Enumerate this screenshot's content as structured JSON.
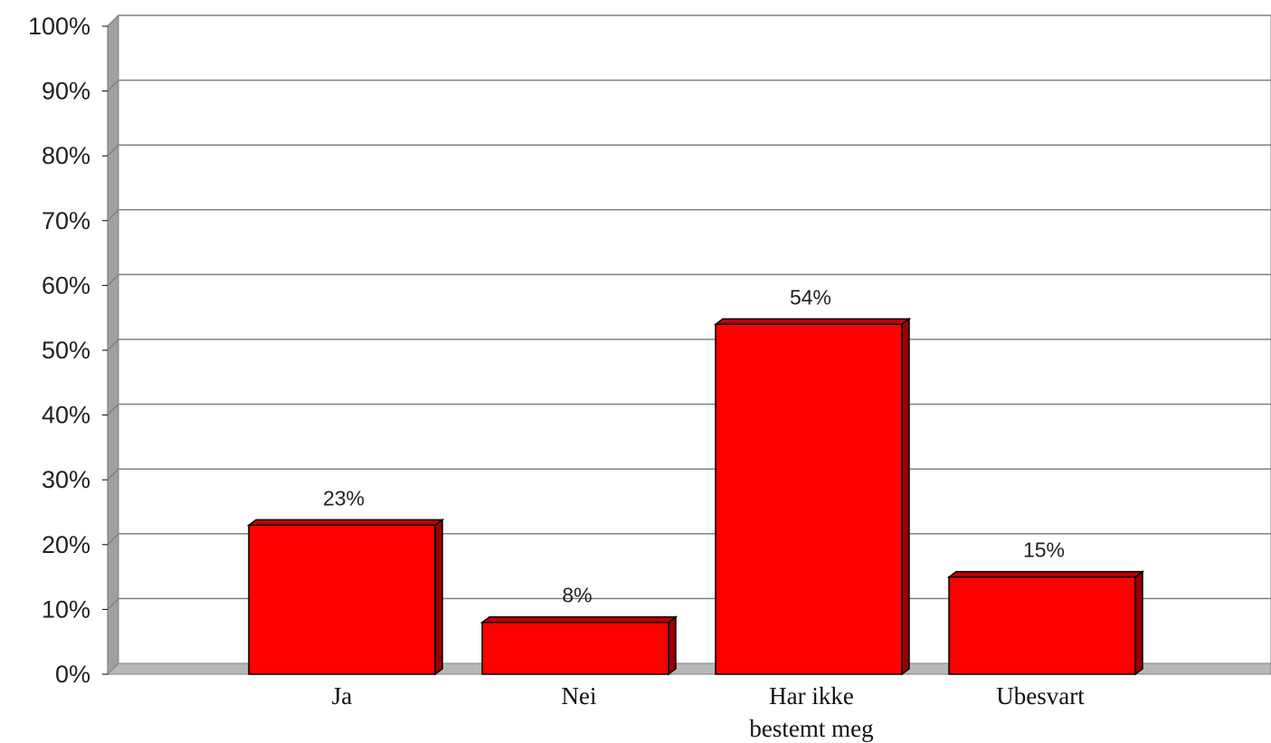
{
  "chart_data": {
    "type": "bar",
    "title": "",
    "xlabel": "",
    "ylabel": "",
    "categories": [
      "Ja",
      "Nei",
      "Har ikke bestemt meg",
      "Ubesvart"
    ],
    "category_label_lines": [
      [
        "Ja"
      ],
      [
        "Nei"
      ],
      [
        "Har ikke",
        "bestemt meg"
      ],
      [
        "Ubesvart"
      ]
    ],
    "values": [
      23,
      8,
      54,
      15
    ],
    "data_labels": [
      "23%",
      "8%",
      "54%",
      "15%"
    ],
    "yticks": [
      "0%",
      "10%",
      "20%",
      "30%",
      "40%",
      "50%",
      "60%",
      "70%",
      "80%",
      "90%",
      "100%"
    ],
    "ylim": [
      0,
      100
    ],
    "grid": true,
    "legend": "none",
    "style": "3d-bar",
    "colors": {
      "bar_front": "#ff0000",
      "bar_top": "#c00000",
      "bar_side": "#990000",
      "bar_outline": "#000000",
      "gridline": "#808080",
      "wall": "#ffffff",
      "axis_side": "#a0a0a0",
      "floor": "#b8b8b8"
    }
  }
}
